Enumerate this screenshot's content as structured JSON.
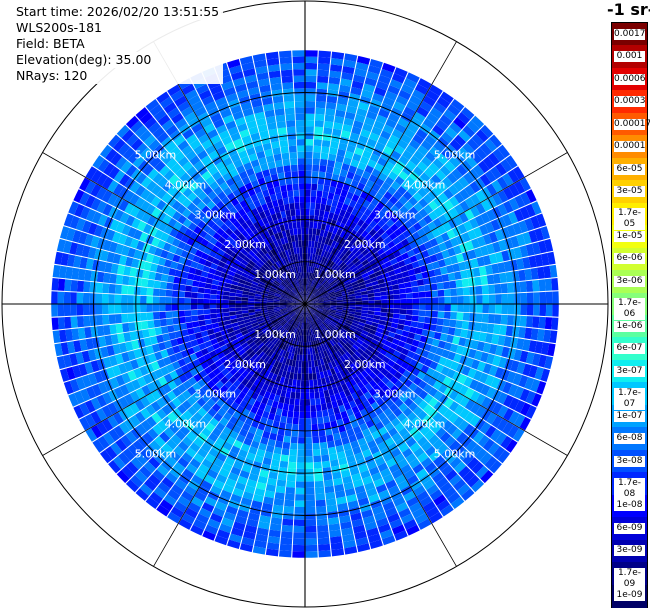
{
  "header": {
    "start_time": "Start time: 2026/02/20 13:51:55",
    "instrument": "WLS200s-181",
    "field": "Field: BETA",
    "elevation": "Elevation(deg): 35.00",
    "nrays": "NRays: 120"
  },
  "colorbar": {
    "unit_label": "-1 sr-",
    "ticks": [
      "0.0017",
      "0.001",
      "0.0006",
      "0.0003",
      "0.00017",
      "0.0001",
      "6e-05",
      "3e-05",
      "1.7e-05",
      "1e-05",
      "6e-06",
      "3e-06",
      "1.7e-06",
      "1e-06",
      "6e-07",
      "3e-07",
      "1.7e-07",
      "1e-07",
      "6e-08",
      "3e-08",
      "1.7e-08",
      "1e-08",
      "6e-09",
      "3e-09",
      "1.7e-09",
      "1e-09"
    ],
    "colors": [
      "#7a0000",
      "#b30000",
      "#e30000",
      "#ff2a00",
      "#ff5a00",
      "#ff8c00",
      "#ffb000",
      "#ffd000",
      "#ffee00",
      "#f2ff10",
      "#d2ff30",
      "#aaff55",
      "#86ff7a",
      "#5cffa0",
      "#33ffcc",
      "#10eef0",
      "#00c8ff",
      "#00a2ff",
      "#0078ff",
      "#0050ff",
      "#0028ff",
      "#0000ff",
      "#0000d8",
      "#0000b0",
      "#000088",
      "#000066"
    ]
  },
  "chart_data": {
    "type": "ppi",
    "field": "BETA",
    "elevation_deg": 35.0,
    "n_rays": 120,
    "max_range_km": 6.0,
    "range_rings_km": [
      1,
      2,
      3,
      4,
      5
    ],
    "ring_labels": [
      "1.00km",
      "2.00km",
      "3.00km",
      "4.00km",
      "5.00km"
    ],
    "spokes_deg": [
      0,
      30,
      60,
      90,
      120,
      150,
      180,
      210,
      240,
      270,
      300,
      330
    ],
    "beta_profile_log10": [
      {
        "range_km": 0.2,
        "log_beta": -8.9
      },
      {
        "range_km": 1.0,
        "log_beta": -8.6
      },
      {
        "range_km": 2.0,
        "log_beta": -8.2
      },
      {
        "range_km": 3.0,
        "log_beta": -7.6
      },
      {
        "range_km": 3.8,
        "log_beta": -6.8
      },
      {
        "range_km": 4.4,
        "log_beta": -6.9
      },
      {
        "range_km": 5.2,
        "log_beta": -7.3
      },
      {
        "range_km": 6.0,
        "log_beta": -7.6
      }
    ]
  }
}
